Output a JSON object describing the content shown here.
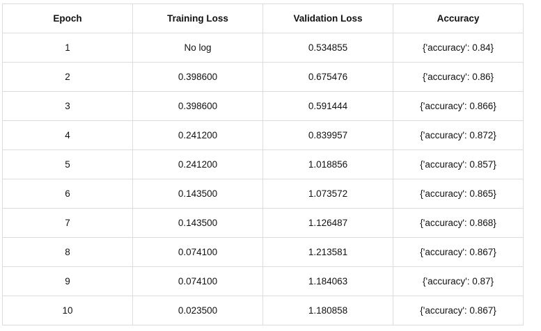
{
  "table": {
    "header": [
      "Epoch",
      "Training Loss",
      "Validation Loss",
      "Accuracy"
    ],
    "rows": [
      [
        "1",
        "No log",
        "0.534855",
        "{'accuracy': 0.84}"
      ],
      [
        "2",
        "0.398600",
        "0.675476",
        "{'accuracy': 0.86}"
      ],
      [
        "3",
        "0.398600",
        "0.591444",
        "{'accuracy': 0.866}"
      ],
      [
        "4",
        "0.241200",
        "0.839957",
        "{'accuracy': 0.872}"
      ],
      [
        "5",
        "0.241200",
        "1.018856",
        "{'accuracy': 0.857}"
      ],
      [
        "6",
        "0.143500",
        "1.073572",
        "{'accuracy': 0.865}"
      ],
      [
        "7",
        "0.143500",
        "1.126487",
        "{'accuracy': 0.868}"
      ],
      [
        "8",
        "0.074100",
        "1.213581",
        "{'accuracy': 0.867}"
      ],
      [
        "9",
        "0.074100",
        "1.184063",
        "{'accuracy': 0.87}"
      ],
      [
        "10",
        "0.023500",
        "1.180858",
        "{'accuracy': 0.867}"
      ]
    ]
  }
}
